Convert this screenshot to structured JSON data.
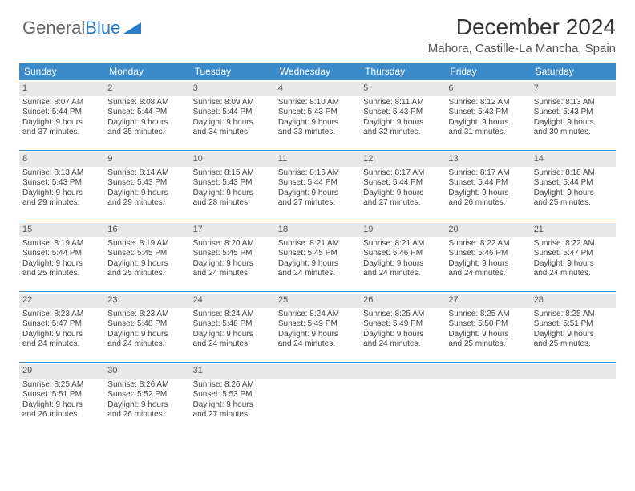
{
  "logo": {
    "part1": "General",
    "part2": "Blue",
    "triangle_color": "#2a7cc7"
  },
  "header": {
    "title": "December 2024",
    "subtitle": "Mahora, Castille-La Mancha, Spain"
  },
  "style": {
    "header_bg": "#3b8ac9",
    "header_text": "#ffffff",
    "cell_border": "#3b8ac9",
    "daynum_bg": "#e8e8e8",
    "page_bg": "#ffffff",
    "title_fontsize": 28,
    "subtitle_fontsize": 15,
    "dayheader_fontsize": 12,
    "cell_fontsize": 10
  },
  "day_labels": [
    "Sunday",
    "Monday",
    "Tuesday",
    "Wednesday",
    "Thursday",
    "Friday",
    "Saturday"
  ],
  "weeks": [
    [
      {
        "n": "1",
        "sr": "Sunrise: 8:07 AM",
        "ss": "Sunset: 5:44 PM",
        "d1": "Daylight: 9 hours",
        "d2": "and 37 minutes."
      },
      {
        "n": "2",
        "sr": "Sunrise: 8:08 AM",
        "ss": "Sunset: 5:44 PM",
        "d1": "Daylight: 9 hours",
        "d2": "and 35 minutes."
      },
      {
        "n": "3",
        "sr": "Sunrise: 8:09 AM",
        "ss": "Sunset: 5:44 PM",
        "d1": "Daylight: 9 hours",
        "d2": "and 34 minutes."
      },
      {
        "n": "4",
        "sr": "Sunrise: 8:10 AM",
        "ss": "Sunset: 5:43 PM",
        "d1": "Daylight: 9 hours",
        "d2": "and 33 minutes."
      },
      {
        "n": "5",
        "sr": "Sunrise: 8:11 AM",
        "ss": "Sunset: 5:43 PM",
        "d1": "Daylight: 9 hours",
        "d2": "and 32 minutes."
      },
      {
        "n": "6",
        "sr": "Sunrise: 8:12 AM",
        "ss": "Sunset: 5:43 PM",
        "d1": "Daylight: 9 hours",
        "d2": "and 31 minutes."
      },
      {
        "n": "7",
        "sr": "Sunrise: 8:13 AM",
        "ss": "Sunset: 5:43 PM",
        "d1": "Daylight: 9 hours",
        "d2": "and 30 minutes."
      }
    ],
    [
      {
        "n": "8",
        "sr": "Sunrise: 8:13 AM",
        "ss": "Sunset: 5:43 PM",
        "d1": "Daylight: 9 hours",
        "d2": "and 29 minutes."
      },
      {
        "n": "9",
        "sr": "Sunrise: 8:14 AM",
        "ss": "Sunset: 5:43 PM",
        "d1": "Daylight: 9 hours",
        "d2": "and 29 minutes."
      },
      {
        "n": "10",
        "sr": "Sunrise: 8:15 AM",
        "ss": "Sunset: 5:43 PM",
        "d1": "Daylight: 9 hours",
        "d2": "and 28 minutes."
      },
      {
        "n": "11",
        "sr": "Sunrise: 8:16 AM",
        "ss": "Sunset: 5:44 PM",
        "d1": "Daylight: 9 hours",
        "d2": "and 27 minutes."
      },
      {
        "n": "12",
        "sr": "Sunrise: 8:17 AM",
        "ss": "Sunset: 5:44 PM",
        "d1": "Daylight: 9 hours",
        "d2": "and 27 minutes."
      },
      {
        "n": "13",
        "sr": "Sunrise: 8:17 AM",
        "ss": "Sunset: 5:44 PM",
        "d1": "Daylight: 9 hours",
        "d2": "and 26 minutes."
      },
      {
        "n": "14",
        "sr": "Sunrise: 8:18 AM",
        "ss": "Sunset: 5:44 PM",
        "d1": "Daylight: 9 hours",
        "d2": "and 25 minutes."
      }
    ],
    [
      {
        "n": "15",
        "sr": "Sunrise: 8:19 AM",
        "ss": "Sunset: 5:44 PM",
        "d1": "Daylight: 9 hours",
        "d2": "and 25 minutes."
      },
      {
        "n": "16",
        "sr": "Sunrise: 8:19 AM",
        "ss": "Sunset: 5:45 PM",
        "d1": "Daylight: 9 hours",
        "d2": "and 25 minutes."
      },
      {
        "n": "17",
        "sr": "Sunrise: 8:20 AM",
        "ss": "Sunset: 5:45 PM",
        "d1": "Daylight: 9 hours",
        "d2": "and 24 minutes."
      },
      {
        "n": "18",
        "sr": "Sunrise: 8:21 AM",
        "ss": "Sunset: 5:45 PM",
        "d1": "Daylight: 9 hours",
        "d2": "and 24 minutes."
      },
      {
        "n": "19",
        "sr": "Sunrise: 8:21 AM",
        "ss": "Sunset: 5:46 PM",
        "d1": "Daylight: 9 hours",
        "d2": "and 24 minutes."
      },
      {
        "n": "20",
        "sr": "Sunrise: 8:22 AM",
        "ss": "Sunset: 5:46 PM",
        "d1": "Daylight: 9 hours",
        "d2": "and 24 minutes."
      },
      {
        "n": "21",
        "sr": "Sunrise: 8:22 AM",
        "ss": "Sunset: 5:47 PM",
        "d1": "Daylight: 9 hours",
        "d2": "and 24 minutes."
      }
    ],
    [
      {
        "n": "22",
        "sr": "Sunrise: 8:23 AM",
        "ss": "Sunset: 5:47 PM",
        "d1": "Daylight: 9 hours",
        "d2": "and 24 minutes."
      },
      {
        "n": "23",
        "sr": "Sunrise: 8:23 AM",
        "ss": "Sunset: 5:48 PM",
        "d1": "Daylight: 9 hours",
        "d2": "and 24 minutes."
      },
      {
        "n": "24",
        "sr": "Sunrise: 8:24 AM",
        "ss": "Sunset: 5:48 PM",
        "d1": "Daylight: 9 hours",
        "d2": "and 24 minutes."
      },
      {
        "n": "25",
        "sr": "Sunrise: 8:24 AM",
        "ss": "Sunset: 5:49 PM",
        "d1": "Daylight: 9 hours",
        "d2": "and 24 minutes."
      },
      {
        "n": "26",
        "sr": "Sunrise: 8:25 AM",
        "ss": "Sunset: 5:49 PM",
        "d1": "Daylight: 9 hours",
        "d2": "and 24 minutes."
      },
      {
        "n": "27",
        "sr": "Sunrise: 8:25 AM",
        "ss": "Sunset: 5:50 PM",
        "d1": "Daylight: 9 hours",
        "d2": "and 25 minutes."
      },
      {
        "n": "28",
        "sr": "Sunrise: 8:25 AM",
        "ss": "Sunset: 5:51 PM",
        "d1": "Daylight: 9 hours",
        "d2": "and 25 minutes."
      }
    ],
    [
      {
        "n": "29",
        "sr": "Sunrise: 8:25 AM",
        "ss": "Sunset: 5:51 PM",
        "d1": "Daylight: 9 hours",
        "d2": "and 26 minutes."
      },
      {
        "n": "30",
        "sr": "Sunrise: 8:26 AM",
        "ss": "Sunset: 5:52 PM",
        "d1": "Daylight: 9 hours",
        "d2": "and 26 minutes."
      },
      {
        "n": "31",
        "sr": "Sunrise: 8:26 AM",
        "ss": "Sunset: 5:53 PM",
        "d1": "Daylight: 9 hours",
        "d2": "and 27 minutes."
      },
      null,
      null,
      null,
      null
    ]
  ]
}
